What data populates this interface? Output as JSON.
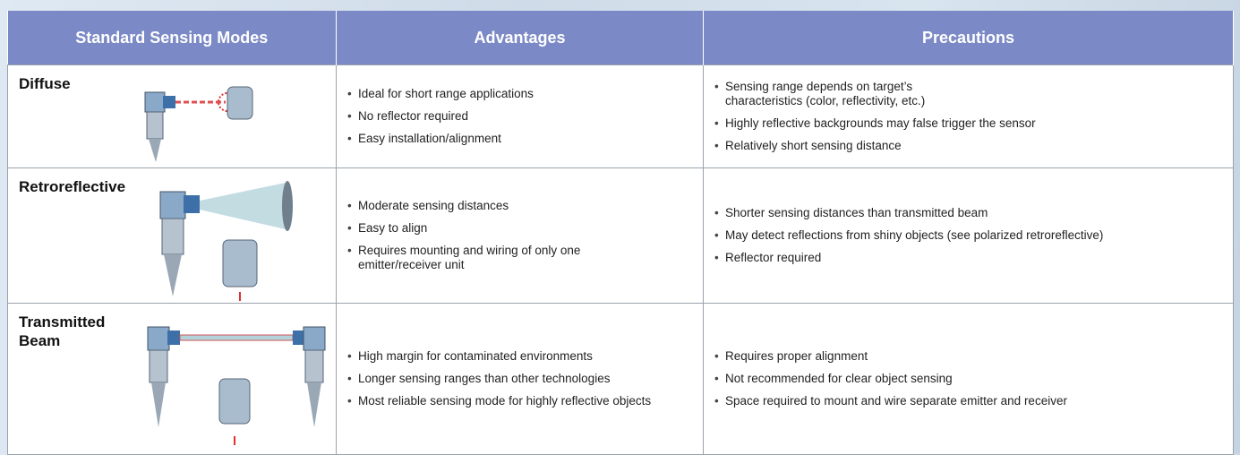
{
  "table": {
    "header": [
      "Standard Sensing Modes",
      "Advantages",
      "Precautions"
    ],
    "rows": [
      {
        "mode": "Diffuse",
        "advantages": [
          "Ideal for short range applications",
          "No reflector required",
          "Easy installation/alignment"
        ],
        "precautions": [
          "Sensing range depends on target’s characteristics (color, reflectivity, etc.)",
          "Highly reflective backgrounds may false trigger the sensor",
          "Relatively short sensing distance"
        ]
      },
      {
        "mode": "Retroreflective",
        "advantages": [
          "Moderate sensing distances",
          "Easy to align",
          "Requires mounting and wiring of only one emitter/receiver unit"
        ],
        "precautions": [
          "Shorter sensing distances than transmitted beam",
          "May detect reflections from shiny objects (see polarized retroreflective)",
          "Reflector required"
        ]
      },
      {
        "mode": "Transmitted Beam",
        "advantages": [
          "High margin for contaminated environments",
          "Longer sensing ranges than other technologies",
          "Most reliable sensing mode for highly reflective objects"
        ],
        "precautions": [
          "Requires proper alignment",
          "Not recommended for clear object sensing",
          "Space required to mount and wire separate emitter and receiver"
        ]
      }
    ]
  }
}
